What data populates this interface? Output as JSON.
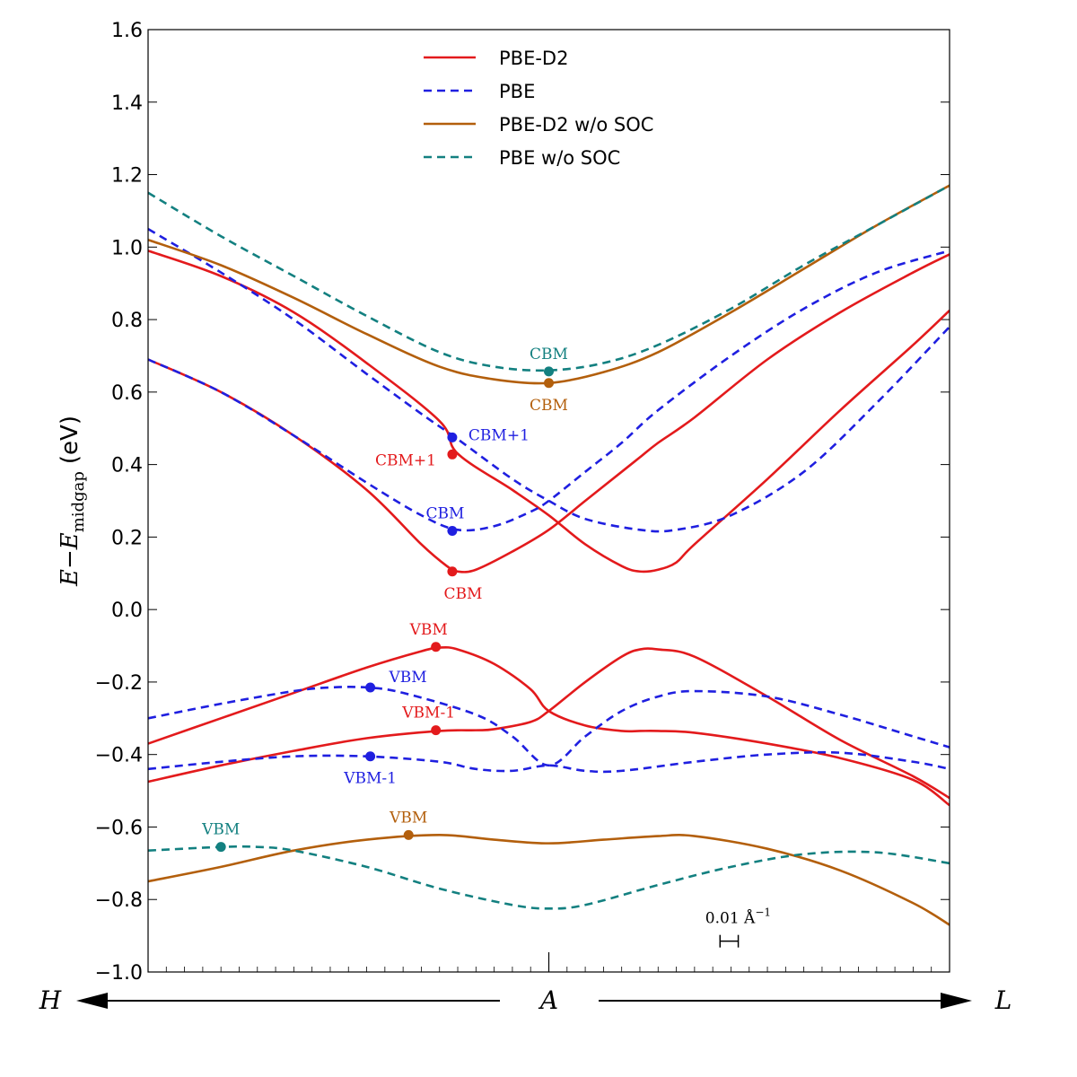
{
  "chart_data": {
    "type": "line",
    "title": "",
    "ylabel_parts": {
      "e": "E",
      "minus": "−",
      "sub_e": "E",
      "sub": "midgap",
      "unit": "(eV)"
    },
    "ylim": [
      -1.0,
      1.6
    ],
    "xlim": [
      -0.11,
      0.11
    ],
    "yticks": [
      -1.0,
      -0.8,
      -0.6,
      -0.4,
      -0.2,
      0.0,
      0.2,
      0.4,
      0.6,
      0.8,
      1.0,
      1.2,
      1.4,
      1.6
    ],
    "ytick_labels": [
      "−1.0",
      "−0.8",
      "−0.6",
      "−0.4",
      "−0.2",
      "0.0",
      "0.2",
      "0.4",
      "0.6",
      "0.8",
      "1.0",
      "1.2",
      "1.4",
      "1.6"
    ],
    "k_labels": {
      "left": "H",
      "center": "A",
      "right": "L"
    },
    "scale_bar": {
      "text": "0.01 Å",
      "sup": "−1",
      "length": 0.005,
      "x": 0.047,
      "y": -0.915
    },
    "colors": {
      "pbe_d2": "#e31a1c",
      "pbe": "#1f1fe0",
      "pbe_d2_nosoc": "#b35f0c",
      "pbe_nosoc": "#138080"
    },
    "legend": [
      {
        "label": "PBE-D2",
        "color": "#e31a1c",
        "dash": "solid"
      },
      {
        "label": "PBE",
        "color": "#1f1fe0",
        "dash": "dashed"
      },
      {
        "label": "PBE-D2 w/o SOC",
        "color": "#b35f0c",
        "dash": "solid"
      },
      {
        "label": "PBE w/o SOC",
        "color": "#138080",
        "dash": "dashed"
      }
    ],
    "series": [
      {
        "name": "PBE-D2 CB1",
        "color": "#e31a1c",
        "dash": "solid",
        "x": [
          -0.11,
          -0.09,
          -0.07,
          -0.05,
          -0.035,
          -0.028,
          -0.025,
          -0.02,
          -0.01,
          0,
          0.01,
          0.02,
          0.025,
          0.03,
          0.04,
          0.06,
          0.08,
          0.1,
          0.11
        ],
        "y": [
          0.69,
          0.6,
          0.48,
          0.33,
          0.18,
          0.12,
          0.105,
          0.11,
          0.16,
          0.22,
          0.3,
          0.38,
          0.42,
          0.46,
          0.53,
          0.69,
          0.82,
          0.93,
          0.98
        ]
      },
      {
        "name": "PBE-D2 CB2",
        "color": "#e31a1c",
        "dash": "solid",
        "x": [
          -0.11,
          -0.09,
          -0.07,
          -0.05,
          -0.03,
          -0.025,
          -0.01,
          0,
          0.01,
          0.02,
          0.025,
          0.03,
          0.035,
          0.04,
          0.06,
          0.08,
          0.1,
          0.11
        ],
        "y": [
          0.99,
          0.92,
          0.82,
          0.68,
          0.52,
          0.43,
          0.33,
          0.26,
          0.18,
          0.12,
          0.105,
          0.11,
          0.13,
          0.18,
          0.36,
          0.55,
          0.73,
          0.825
        ]
      },
      {
        "name": "PBE CB1",
        "color": "#1f1fe0",
        "dash": "dashed",
        "x": [
          -0.11,
          -0.09,
          -0.07,
          -0.05,
          -0.035,
          -0.025,
          -0.015,
          -0.005,
          0,
          0.01,
          0.02,
          0.03,
          0.05,
          0.07,
          0.09,
          0.11
        ],
        "y": [
          0.69,
          0.6,
          0.48,
          0.35,
          0.26,
          0.22,
          0.23,
          0.27,
          0.3,
          0.38,
          0.46,
          0.55,
          0.7,
          0.83,
          0.93,
          0.99
        ]
      },
      {
        "name": "PBE CB2",
        "color": "#1f1fe0",
        "dash": "dashed",
        "x": [
          -0.11,
          -0.09,
          -0.07,
          -0.05,
          -0.035,
          -0.025,
          -0.01,
          0,
          0.01,
          0.025,
          0.035,
          0.05,
          0.07,
          0.09,
          0.11
        ],
        "y": [
          1.05,
          0.93,
          0.8,
          0.65,
          0.54,
          0.47,
          0.36,
          0.3,
          0.25,
          0.22,
          0.22,
          0.26,
          0.38,
          0.57,
          0.78
        ]
      },
      {
        "name": "PBE-D2 w/o SOC CB",
        "color": "#b35f0c",
        "dash": "solid",
        "x": [
          -0.11,
          -0.09,
          -0.07,
          -0.05,
          -0.03,
          -0.015,
          0,
          0.015,
          0.03,
          0.05,
          0.07,
          0.09,
          0.11
        ],
        "y": [
          1.02,
          0.95,
          0.86,
          0.76,
          0.67,
          0.635,
          0.625,
          0.655,
          0.71,
          0.82,
          0.94,
          1.06,
          1.17
        ]
      },
      {
        "name": "PBE w/o SOC CB",
        "color": "#138080",
        "dash": "dashed",
        "x": [
          -0.11,
          -0.09,
          -0.07,
          -0.05,
          -0.03,
          -0.015,
          0,
          0.015,
          0.03,
          0.05,
          0.07,
          0.09,
          0.11
        ],
        "y": [
          1.15,
          1.03,
          0.92,
          0.81,
          0.71,
          0.67,
          0.66,
          0.68,
          0.73,
          0.83,
          0.95,
          1.06,
          1.17
        ]
      },
      {
        "name": "PBE-D2 VB1",
        "color": "#e31a1c",
        "dash": "solid",
        "x": [
          -0.11,
          -0.09,
          -0.07,
          -0.05,
          -0.035,
          -0.03,
          -0.025,
          -0.015,
          -0.005,
          0,
          0.01,
          0.02,
          0.025,
          0.03,
          0.04,
          0.06,
          0.08,
          0.1,
          0.11
        ],
        "y": [
          -0.37,
          -0.3,
          -0.23,
          -0.16,
          -0.115,
          -0.105,
          -0.11,
          -0.15,
          -0.22,
          -0.28,
          -0.32,
          -0.335,
          -0.335,
          -0.335,
          -0.34,
          -0.37,
          -0.41,
          -0.47,
          -0.54
        ]
      },
      {
        "name": "PBE-D2 VB2",
        "color": "#e31a1c",
        "dash": "solid",
        "x": [
          -0.11,
          -0.09,
          -0.07,
          -0.05,
          -0.03,
          -0.02,
          -0.015,
          -0.005,
          0,
          0.01,
          0.02,
          0.025,
          0.03,
          0.04,
          0.06,
          0.08,
          0.1,
          0.11
        ],
        "y": [
          -0.475,
          -0.43,
          -0.39,
          -0.355,
          -0.335,
          -0.333,
          -0.33,
          -0.31,
          -0.28,
          -0.2,
          -0.13,
          -0.11,
          -0.11,
          -0.13,
          -0.24,
          -0.36,
          -0.46,
          -0.52
        ]
      },
      {
        "name": "PBE VB1",
        "color": "#1f1fe0",
        "dash": "dashed",
        "x": [
          -0.11,
          -0.09,
          -0.07,
          -0.06,
          -0.05,
          -0.04,
          -0.02,
          -0.01,
          0,
          0.01,
          0.02,
          0.03,
          0.04,
          0.06,
          0.08,
          0.1,
          0.11
        ],
        "y": [
          -0.3,
          -0.26,
          -0.225,
          -0.215,
          -0.215,
          -0.23,
          -0.29,
          -0.35,
          -0.43,
          -0.35,
          -0.28,
          -0.24,
          -0.225,
          -0.24,
          -0.29,
          -0.35,
          -0.38
        ]
      },
      {
        "name": "PBE VB2",
        "color": "#1f1fe0",
        "dash": "dashed",
        "x": [
          -0.11,
          -0.09,
          -0.07,
          -0.05,
          -0.03,
          -0.02,
          -0.01,
          0,
          0.01,
          0.02,
          0.04,
          0.06,
          0.08,
          0.1,
          0.11
        ],
        "y": [
          -0.44,
          -0.42,
          -0.405,
          -0.405,
          -0.42,
          -0.44,
          -0.445,
          -0.43,
          -0.445,
          -0.445,
          -0.42,
          -0.4,
          -0.395,
          -0.42,
          -0.44
        ]
      },
      {
        "name": "PBE-D2 w/o SOC VB",
        "color": "#b35f0c",
        "dash": "solid",
        "x": [
          -0.11,
          -0.09,
          -0.07,
          -0.05,
          -0.03,
          -0.015,
          0,
          0.015,
          0.03,
          0.04,
          0.06,
          0.08,
          0.1,
          0.11
        ],
        "y": [
          -0.75,
          -0.71,
          -0.665,
          -0.635,
          -0.622,
          -0.635,
          -0.645,
          -0.635,
          -0.625,
          -0.625,
          -0.66,
          -0.72,
          -0.81,
          -0.87
        ]
      },
      {
        "name": "PBE w/o SOC VB",
        "color": "#138080",
        "dash": "dashed",
        "x": [
          -0.11,
          -0.09,
          -0.08,
          -0.07,
          -0.05,
          -0.03,
          -0.01,
          0,
          0.01,
          0.03,
          0.05,
          0.07,
          0.09,
          0.11
        ],
        "y": [
          -0.665,
          -0.655,
          -0.655,
          -0.665,
          -0.71,
          -0.77,
          -0.815,
          -0.825,
          -0.815,
          -0.76,
          -0.71,
          -0.675,
          -0.67,
          -0.7
        ]
      }
    ],
    "annotations": [
      {
        "text": "CBM",
        "x": 0.0,
        "y": 0.657,
        "color": "#138080",
        "pos": "above"
      },
      {
        "text": "CBM",
        "x": 0.0,
        "y": 0.625,
        "color": "#b35f0c",
        "pos": "below"
      },
      {
        "text": "CBM+1",
        "x": -0.0265,
        "y": 0.475,
        "color": "#1f1fe0",
        "pos": "right"
      },
      {
        "text": "CBM+1",
        "x": -0.0265,
        "y": 0.428,
        "color": "#e31a1c",
        "pos": "left-below"
      },
      {
        "text": "CBM",
        "x": -0.0265,
        "y": 0.217,
        "color": "#1f1fe0",
        "pos": "above-left"
      },
      {
        "text": "CBM",
        "x": -0.0265,
        "y": 0.105,
        "color": "#e31a1c",
        "pos": "below-right"
      },
      {
        "text": "VBM",
        "x": -0.031,
        "y": -0.103,
        "color": "#e31a1c",
        "pos": "above-left"
      },
      {
        "text": "VBM",
        "x": -0.049,
        "y": -0.215,
        "color": "#1f1fe0",
        "pos": "above-right"
      },
      {
        "text": "VBM-1",
        "x": -0.031,
        "y": -0.333,
        "color": "#e31a1c",
        "pos": "above-left"
      },
      {
        "text": "VBM-1",
        "x": -0.049,
        "y": -0.405,
        "color": "#1f1fe0",
        "pos": "below"
      },
      {
        "text": "VBM",
        "x": -0.0385,
        "y": -0.622,
        "color": "#b35f0c",
        "pos": "above"
      },
      {
        "text": "VBM",
        "x": -0.09,
        "y": -0.655,
        "color": "#138080",
        "pos": "above"
      }
    ]
  }
}
